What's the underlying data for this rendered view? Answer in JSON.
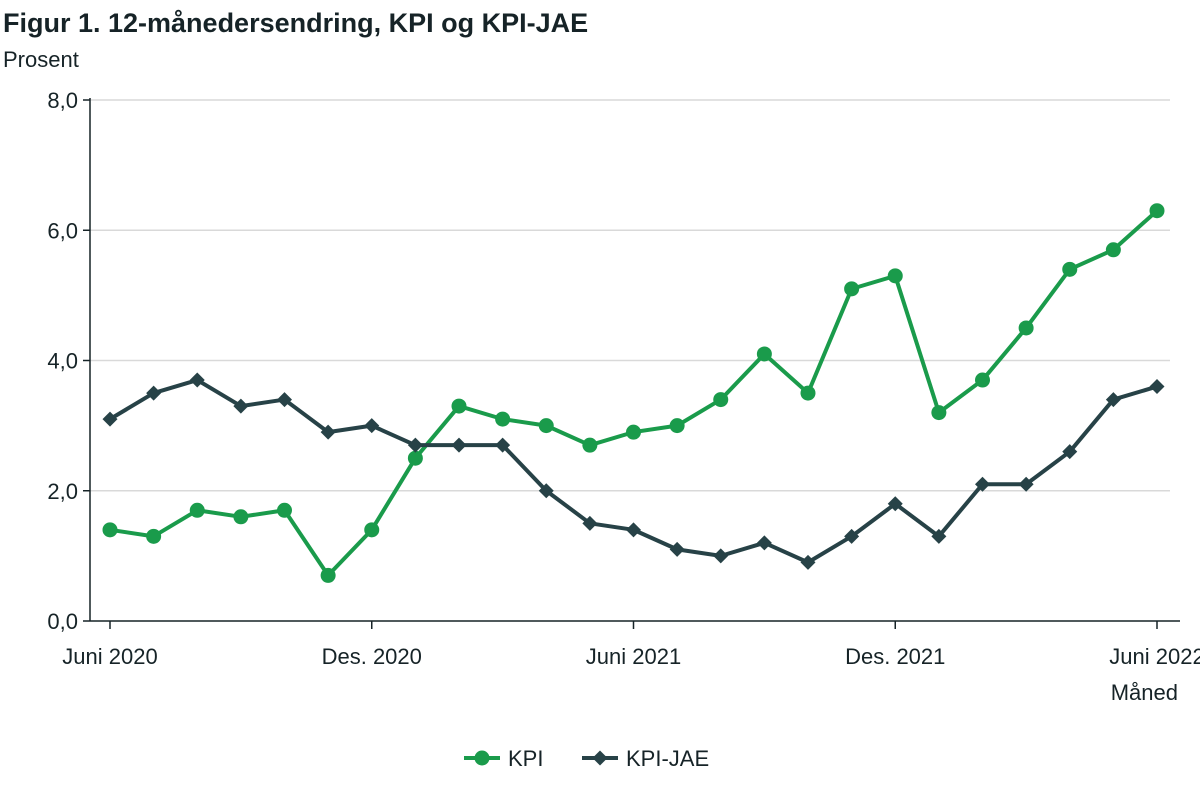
{
  "chart_data": {
    "type": "line",
    "title": "Figur 1. 12-månedersendring, KPI og KPI-JAE",
    "ylabel": "Prosent",
    "xlabel": "Måned",
    "ylim": [
      0,
      8
    ],
    "yticks": [
      "0,0",
      "2,0",
      "4,0",
      "6,0",
      "8,0"
    ],
    "ytick_values": [
      0,
      2,
      4,
      6,
      8
    ],
    "xticks": [
      {
        "label": "Juni 2020",
        "index": 0
      },
      {
        "label": "Des. 2020",
        "index": 6
      },
      {
        "label": "Juni 2021",
        "index": 12
      },
      {
        "label": "Des. 2021",
        "index": 18
      },
      {
        "label": "Juni 2022",
        "index": 24
      }
    ],
    "x": [
      "2020-06",
      "2020-07",
      "2020-08",
      "2020-09",
      "2020-10",
      "2020-11",
      "2020-12",
      "2021-01",
      "2021-02",
      "2021-03",
      "2021-04",
      "2021-05",
      "2021-06",
      "2021-07",
      "2021-08",
      "2021-09",
      "2021-10",
      "2021-11",
      "2021-12",
      "2022-01",
      "2022-02",
      "2022-03",
      "2022-04",
      "2022-05",
      "2022-06"
    ],
    "grid": true,
    "legend_position": "bottom-center",
    "series": [
      {
        "name": "KPI",
        "color": "#1a9b4b",
        "marker": "circle",
        "values": [
          1.4,
          1.3,
          1.7,
          1.6,
          1.7,
          0.7,
          1.4,
          2.5,
          3.3,
          3.1,
          3.0,
          2.7,
          2.9,
          3.0,
          3.4,
          4.1,
          3.5,
          5.1,
          5.3,
          3.2,
          3.7,
          4.5,
          5.4,
          5.7,
          6.3
        ]
      },
      {
        "name": "KPI-JAE",
        "color": "#274247",
        "marker": "diamond",
        "values": [
          3.1,
          3.5,
          3.7,
          3.3,
          3.4,
          2.9,
          3.0,
          2.7,
          2.7,
          2.7,
          2.0,
          1.5,
          1.4,
          1.1,
          1.0,
          1.2,
          0.9,
          1.3,
          1.8,
          1.3,
          2.1,
          2.1,
          2.6,
          3.4,
          3.6
        ]
      }
    ]
  }
}
